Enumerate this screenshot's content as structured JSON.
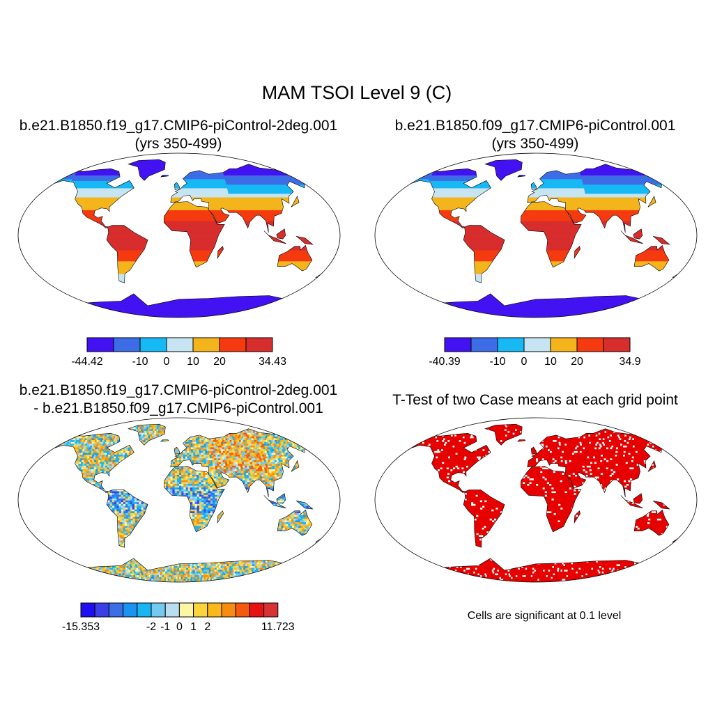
{
  "main_title": "MAM TSOI Level 9 (C)",
  "panels": [
    {
      "title_line1": "b.e21.B1850.f19_g17.CMIP6-piControl-2deg.001",
      "title_line2": "(yrs 350-499)",
      "colorbar": {
        "colors": [
          "#4212f2",
          "#3d6de6",
          "#17b9f4",
          "#c7e4f2",
          "#f4b41c",
          "#f53a0f",
          "#d82d2d"
        ],
        "labels": [
          "-44.42",
          "-10",
          "0",
          "10",
          "20",
          "34.43"
        ],
        "boundaries": [
          -44.42,
          -10,
          0,
          10,
          20,
          34.43
        ]
      }
    },
    {
      "title_line1": "b.e21.B1850.f09_g17.CMIP6-piControl.001",
      "title_line2": "(yrs 350-499)",
      "colorbar": {
        "colors": [
          "#4212f2",
          "#3d6de6",
          "#17b9f4",
          "#c7e4f2",
          "#f4b41c",
          "#f53a0f",
          "#d82d2d"
        ],
        "labels": [
          "-40.39",
          "-10",
          "0",
          "10",
          "20",
          "34.9"
        ],
        "boundaries": [
          -40.39,
          -10,
          0,
          10,
          20,
          34.9
        ]
      }
    },
    {
      "title_line1": "b.e21.B1850.f19_g17.CMIP6-piControl-2deg.001",
      "title_line2": "- b.e21.B1850.f09_g17.CMIP6-piControl.001",
      "colorbar": {
        "colors": [
          "#1f0ef0",
          "#3b3fe8",
          "#3a6fe6",
          "#1b93f0",
          "#19b4f2",
          "#74c9ee",
          "#b9def2",
          "#fdf7a5",
          "#fbd53a",
          "#f9b81b",
          "#f78d10",
          "#f5590f",
          "#e81212",
          "#d63434"
        ],
        "labels": [
          "-15.353",
          "-2",
          "-1",
          "0",
          "1",
          "2",
          "11.723"
        ],
        "boundaries": [
          -15.353,
          -2,
          -1,
          0,
          1,
          2,
          11.723
        ]
      }
    },
    {
      "title_line1": "T-Test of two Case means at each grid point",
      "note": "Cells are significant at 0.1 level"
    }
  ],
  "colors": {
    "ocean": "#ffffff",
    "outline": "#000000",
    "significant": "#e60000"
  }
}
